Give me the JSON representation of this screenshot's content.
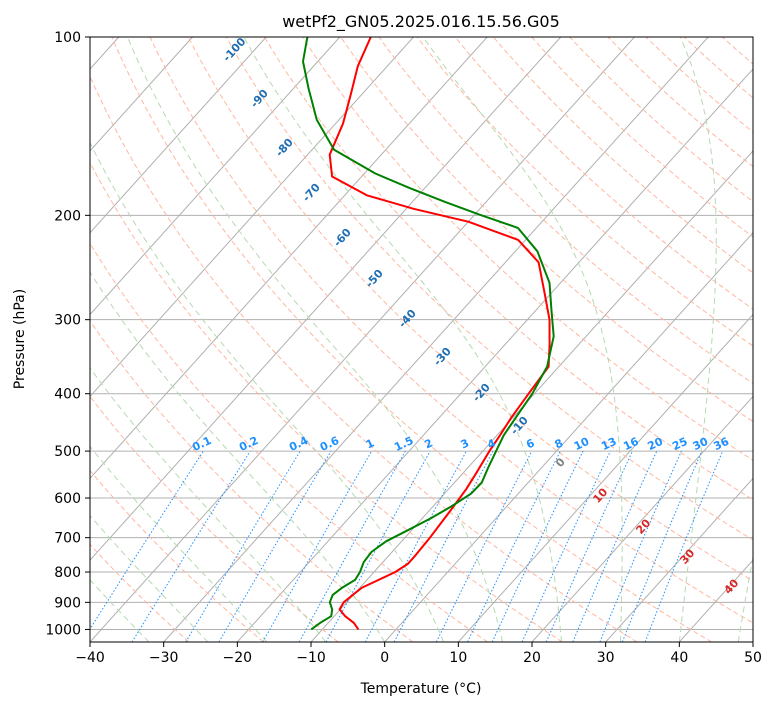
{
  "chart_data": {
    "type": "line",
    "title": "wetPf2_GN05.2025.016.15.56.G05",
    "xlabel": "Temperature (°C)",
    "ylabel": "Pressure (hPa)",
    "xlim": [
      -40,
      50
    ],
    "ylim": [
      1050,
      100
    ],
    "y_scale": "log",
    "grid": true,
    "x_ticks": [
      -40,
      -30,
      -20,
      -10,
      0,
      10,
      20,
      30,
      40,
      50
    ],
    "y_ticks": [
      100,
      200,
      300,
      400,
      500,
      600,
      700,
      800,
      900,
      1000
    ],
    "series": [
      {
        "role": "temperature",
        "color": "#ff0000",
        "points": [
          [
            -5.1,
            1000
          ],
          [
            -6.5,
            975
          ],
          [
            -8.5,
            950
          ],
          [
            -10.1,
            925
          ],
          [
            -10.4,
            900
          ],
          [
            -10.1,
            875
          ],
          [
            -9.7,
            850
          ],
          [
            -8.4,
            825
          ],
          [
            -7.1,
            800
          ],
          [
            -6.4,
            775
          ],
          [
            -6.4,
            750
          ],
          [
            -6.6,
            700
          ],
          [
            -6.9,
            660
          ],
          [
            -7.2,
            620
          ],
          [
            -7.6,
            580
          ],
          [
            -8.2,
            545
          ],
          [
            -9.1,
            500
          ],
          [
            -9.6,
            470
          ],
          [
            -10.2,
            440
          ],
          [
            -10.8,
            400
          ],
          [
            -11.4,
            360
          ],
          [
            -14.0,
            330
          ],
          [
            -17.0,
            300
          ],
          [
            -21.0,
            270
          ],
          [
            -25.5,
            240
          ],
          [
            -31.0,
            220
          ],
          [
            -40.0,
            205
          ],
          [
            -49.0,
            195
          ],
          [
            -57.0,
            185
          ],
          [
            -64.0,
            172
          ],
          [
            -67.0,
            158
          ],
          [
            -69.0,
            140
          ],
          [
            -71.5,
            125
          ],
          [
            -74.0,
            112
          ],
          [
            -75.8,
            100
          ]
        ]
      },
      {
        "role": "dewpoint",
        "color": "#008000",
        "points": [
          [
            -11.5,
            1000
          ],
          [
            -11.1,
            975
          ],
          [
            -10.4,
            950
          ],
          [
            -11.1,
            925
          ],
          [
            -12.3,
            900
          ],
          [
            -12.8,
            875
          ],
          [
            -12.4,
            850
          ],
          [
            -11.6,
            825
          ],
          [
            -11.9,
            800
          ],
          [
            -12.6,
            770
          ],
          [
            -12.8,
            740
          ],
          [
            -12.1,
            710
          ],
          [
            -10.5,
            680
          ],
          [
            -8.9,
            650
          ],
          [
            -7.5,
            620
          ],
          [
            -6.4,
            590
          ],
          [
            -6.3,
            565
          ],
          [
            -7.2,
            535
          ],
          [
            -8.2,
            500
          ],
          [
            -9.1,
            470
          ],
          [
            -9.6,
            440
          ],
          [
            -10.3,
            400
          ],
          [
            -11.6,
            360
          ],
          [
            -14.4,
            320
          ],
          [
            -17.8,
            290
          ],
          [
            -21.5,
            260
          ],
          [
            -27.0,
            230
          ],
          [
            -32.5,
            210
          ],
          [
            -39.0,
            200
          ],
          [
            -45.5,
            190
          ],
          [
            -52.0,
            180
          ],
          [
            -58.5,
            170
          ],
          [
            -67.0,
            155
          ],
          [
            -73.0,
            138
          ],
          [
            -78.0,
            122
          ],
          [
            -82.0,
            110
          ],
          [
            -84.4,
            100
          ]
        ]
      }
    ],
    "dry_adiabat_labels": [
      "-100",
      "-90",
      "-80",
      "-70",
      "-60",
      "-50",
      "-40",
      "-30",
      "-20",
      "-10"
    ],
    "moist_adiabat_labels": [
      "0",
      "10",
      "20",
      "30",
      "40"
    ],
    "mixing_ratio_labels": [
      "0.1",
      "0.2",
      "0.4",
      "0.6",
      "1",
      "1.5",
      "2",
      "3",
      "4",
      "6",
      "8",
      "10",
      "13",
      "16",
      "20",
      "25",
      "30",
      "36"
    ],
    "colors": {
      "isotherm": "#b0b0b0",
      "dry_adiabat": "#ffb7a0",
      "moist_adiabat": "#b6d9b2",
      "mixing_ratio": "#1e90ff",
      "dry_label": "#1f6eb4",
      "mixing_label": "#1e90ff",
      "moist_label_cold": "#808080",
      "moist_label_warm": "#d62728",
      "boundary": "#d8c4a8"
    }
  }
}
